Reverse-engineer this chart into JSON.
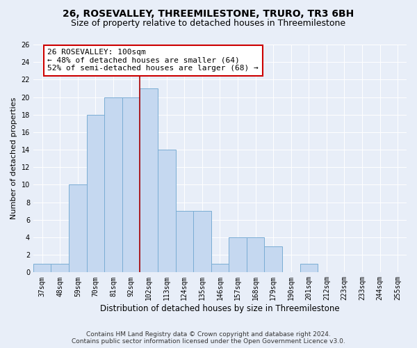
{
  "title1": "26, ROSEVALLEY, THREEMILESTONE, TRURO, TR3 6BH",
  "title2": "Size of property relative to detached houses in Threemilestone",
  "xlabel": "Distribution of detached houses by size in Threemilestone",
  "ylabel": "Number of detached properties",
  "footer1": "Contains HM Land Registry data © Crown copyright and database right 2024.",
  "footer2": "Contains public sector information licensed under the Open Government Licence v3.0.",
  "annotation_line1": "26 ROSEVALLEY: 100sqm",
  "annotation_line2": "← 48% of detached houses are smaller (64)",
  "annotation_line3": "52% of semi-detached houses are larger (68) →",
  "bar_labels": [
    "37sqm",
    "48sqm",
    "59sqm",
    "70sqm",
    "81sqm",
    "92sqm",
    "102sqm",
    "113sqm",
    "124sqm",
    "135sqm",
    "146sqm",
    "157sqm",
    "168sqm",
    "179sqm",
    "190sqm",
    "201sqm",
    "212sqm",
    "223sqm",
    "233sqm",
    "244sqm",
    "255sqm"
  ],
  "bar_values": [
    1,
    1,
    10,
    18,
    20,
    20,
    21,
    14,
    7,
    7,
    1,
    4,
    4,
    3,
    0,
    1,
    0,
    0,
    0,
    0,
    0
  ],
  "bar_color": "#c5d8f0",
  "bar_edge_color": "#7aadd4",
  "highlight_index": 6,
  "vline_color": "#aa0000",
  "ylim": [
    0,
    26
  ],
  "yticks": [
    0,
    2,
    4,
    6,
    8,
    10,
    12,
    14,
    16,
    18,
    20,
    22,
    24,
    26
  ],
  "background_color": "#e8eef8",
  "axes_background": "#e8eef8",
  "grid_color": "#ffffff",
  "title1_fontsize": 10,
  "title2_fontsize": 9,
  "xlabel_fontsize": 8.5,
  "ylabel_fontsize": 8,
  "tick_fontsize": 7,
  "footer_fontsize": 6.5,
  "annotation_fontsize": 8,
  "annotation_box_color": "#ffffff",
  "annotation_box_edge_color": "#cc0000"
}
